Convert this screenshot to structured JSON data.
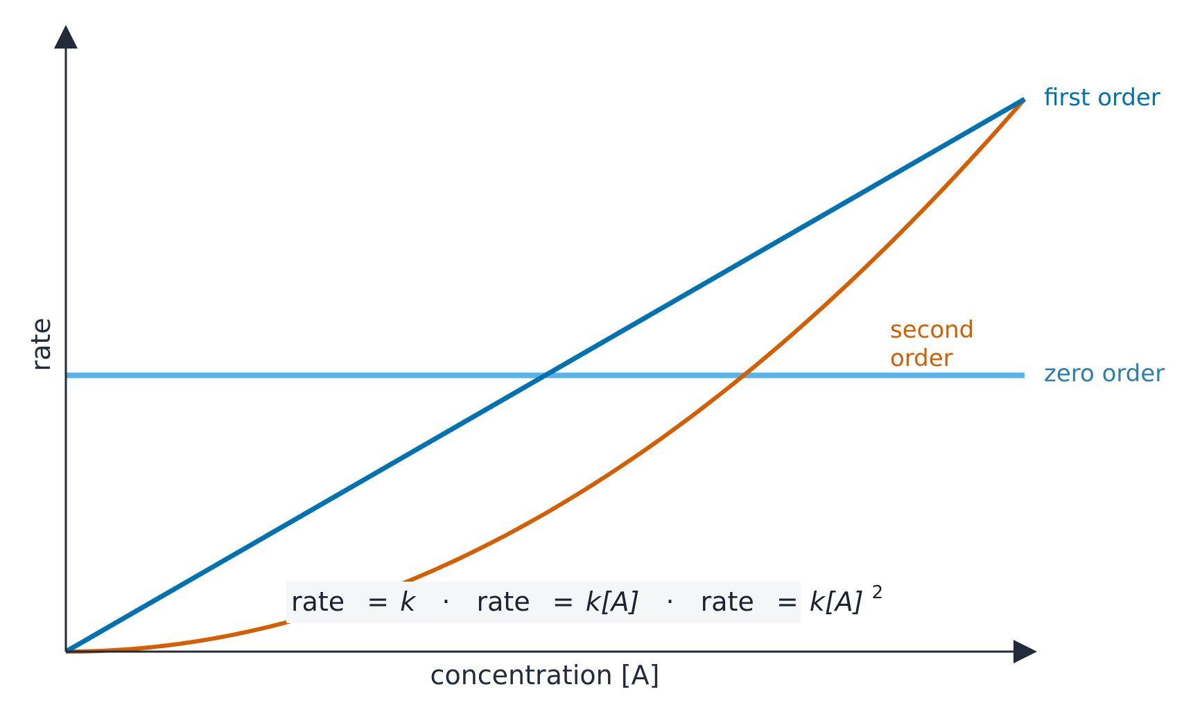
{
  "chart_data": {
    "type": "line",
    "title": "",
    "xlabel": "concentration [A]",
    "ylabel": "rate",
    "xlim": [
      0,
      1
    ],
    "ylim": [
      0,
      1.18
    ],
    "grid": false,
    "legend": "inline labels at right end of each series",
    "series": [
      {
        "name": "zero order",
        "color": "#56b4e9",
        "x": [
          0,
          1
        ],
        "y": [
          0.5,
          0.5
        ]
      },
      {
        "name": "first order",
        "color": "#0072b2",
        "x": [
          0,
          1
        ],
        "y": [
          0,
          1
        ]
      },
      {
        "name": "second order",
        "color": "#d55e00",
        "x": [
          0,
          0.05,
          0.1,
          0.15,
          0.2,
          0.25,
          0.3,
          0.35,
          0.4,
          0.45,
          0.5,
          0.55,
          0.6,
          0.65,
          0.7,
          0.75,
          0.8,
          0.85,
          0.9,
          0.95,
          1
        ],
        "y": [
          0,
          0.0025,
          0.01,
          0.0225,
          0.04,
          0.0625,
          0.09,
          0.1225,
          0.16,
          0.2025,
          0.25,
          0.3025,
          0.36,
          0.4225,
          0.49,
          0.5625,
          0.64,
          0.7225,
          0.81,
          0.9025,
          1
        ]
      }
    ],
    "labels": {
      "first_order": "first order",
      "zero_order": "zero order",
      "second_order_line1": "second",
      "second_order_line2": "order"
    },
    "label_colors": {
      "first_order": "#0072b2",
      "zero_order": "#2b7fb0",
      "second_order": "#d55e00"
    },
    "annotation": {
      "background": "#f4f6f8",
      "part1_prefix": "rate",
      "part1_eq": "=",
      "part1_var": "k",
      "sep1": "·",
      "part2_prefix": "rate",
      "part2_eq": "=",
      "part2_var": "k[A]",
      "sep2": "·",
      "part3_prefix": "rate",
      "part3_eq": "=",
      "part3_var": "k[A]",
      "part3_exp": "2"
    }
  }
}
